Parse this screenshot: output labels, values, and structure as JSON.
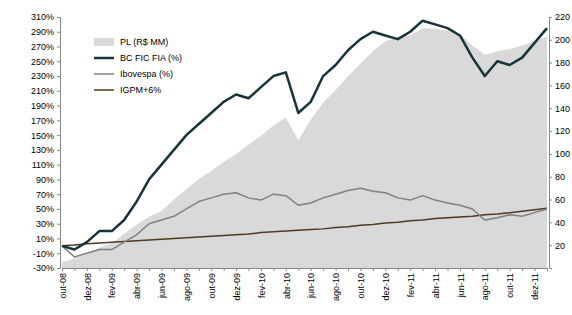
{
  "chart_data": {
    "type": "line",
    "categories": [
      "out-08",
      null,
      "dez-08",
      null,
      "fev-09",
      null,
      "abr-09",
      null,
      "jun-09",
      null,
      "ago-09",
      null,
      "out-09",
      null,
      "dez-09",
      null,
      "fev-10",
      null,
      "abr-10",
      null,
      "jun-10",
      null,
      "ago-10",
      null,
      "out-10",
      null,
      "dez-10",
      null,
      "fev-11",
      null,
      "abr-11",
      null,
      "jun-11",
      null,
      "ago-11",
      null,
      "out-11",
      null,
      "dez-11",
      null
    ],
    "series": [
      {
        "name": "PL (R$ MM)",
        "type": "area",
        "axis": "y2",
        "color": "#d9d9d9",
        "values": [
          5,
          8,
          12,
          18,
          22,
          30,
          38,
          45,
          50,
          60,
          69,
          78,
          85,
          93,
          100,
          108,
          116,
          125,
          132,
          112,
          130,
          145,
          156,
          168,
          179,
          190,
          199,
          202,
          204,
          210,
          210,
          208,
          205,
          195,
          187,
          190,
          192,
          195,
          199,
          203
        ]
      },
      {
        "name": "BC FIC FIA (%)",
        "type": "line",
        "color": "#17343a",
        "values": [
          0,
          -5,
          5,
          20,
          20,
          35,
          60,
          90,
          110,
          130,
          150,
          165,
          180,
          195,
          205,
          200,
          215,
          230,
          235,
          180,
          195,
          230,
          245,
          265,
          280,
          290,
          285,
          280,
          290,
          305,
          300,
          295,
          285,
          255,
          230,
          250,
          245,
          255,
          275,
          295
        ]
      },
      {
        "name": "Ibovespa (%)",
        "type": "line",
        "color": "#808080",
        "values": [
          0,
          -15,
          -10,
          -5,
          -5,
          5,
          15,
          30,
          35,
          40,
          50,
          60,
          65,
          70,
          72,
          65,
          62,
          70,
          68,
          55,
          58,
          65,
          70,
          75,
          78,
          74,
          72,
          65,
          62,
          68,
          62,
          58,
          55,
          50,
          35,
          38,
          42,
          40,
          45,
          50
        ]
      },
      {
        "name": "IGPM+6%",
        "type": "line",
        "color": "#4d3b1f",
        "values": [
          0,
          1,
          3,
          4,
          5,
          6,
          7,
          8,
          9,
          10,
          11,
          12,
          13,
          14,
          15,
          16,
          18,
          19,
          20,
          21,
          22,
          23,
          25,
          26,
          28,
          29,
          31,
          32,
          34,
          35,
          37,
          38,
          39,
          40,
          42,
          43,
          45,
          47,
          49,
          51
        ]
      }
    ],
    "ylim": [
      -30,
      310
    ],
    "yticks": [
      {
        "value": -30,
        "label": "-30%"
      },
      {
        "value": -10,
        "label": "-10%"
      },
      {
        "value": 10,
        "label": "10%"
      },
      {
        "value": 30,
        "label": "30%"
      },
      {
        "value": 50,
        "label": "50%"
      },
      {
        "value": 70,
        "label": "70%"
      },
      {
        "value": 90,
        "label": "90%"
      },
      {
        "value": 110,
        "label": "110%"
      },
      {
        "value": 130,
        "label": "130%"
      },
      {
        "value": 150,
        "label": "150%"
      },
      {
        "value": 170,
        "label": "170%"
      },
      {
        "value": 190,
        "label": "190%"
      },
      {
        "value": 210,
        "label": "210%"
      },
      {
        "value": 230,
        "label": "230%"
      },
      {
        "value": 250,
        "label": "250%"
      },
      {
        "value": 270,
        "label": "270%"
      },
      {
        "value": 290,
        "label": "290%"
      },
      {
        "value": 310,
        "label": "310%"
      }
    ],
    "y2lim": [
      0,
      220
    ],
    "y2ticks": [
      20,
      40,
      60,
      80,
      100,
      120,
      140,
      160,
      180,
      200,
      220
    ],
    "grid": false,
    "legend": "upper-left"
  }
}
